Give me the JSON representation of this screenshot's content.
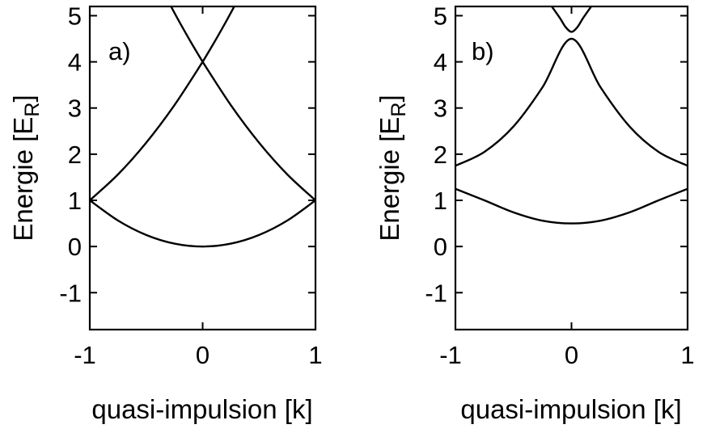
{
  "chart_data": [
    {
      "type": "line",
      "panel_label": "a)",
      "xlabel": "quasi-impulsion [k]",
      "ylabel": "Energie [E",
      "ylabel_sub": "R",
      "ylabel_close": "]",
      "xlim": [
        -1,
        1
      ],
      "ylim": [
        -1.8,
        5.2
      ],
      "xticks": [
        "-1",
        "0",
        "1"
      ],
      "yticks": [
        "-1",
        "0",
        "1",
        "2",
        "3",
        "4",
        "5"
      ],
      "grid": false,
      "series": [
        {
          "x": [
            -1,
            -0.75,
            -0.5,
            -0.25,
            0,
            0.25,
            0.5,
            0.75,
            1
          ],
          "y": [
            1.0,
            0.5625,
            0.25,
            0.0625,
            0.0,
            0.0625,
            0.25,
            0.5625,
            1.0
          ]
        },
        {
          "x": [
            -1,
            -0.75,
            -0.5,
            -0.25,
            0
          ],
          "y": [
            1.0,
            1.5625,
            2.25,
            3.0625,
            4.0
          ]
        },
        {
          "x": [
            0,
            0.25,
            0.5,
            0.75,
            1
          ],
          "y": [
            4.0,
            3.0625,
            2.25,
            1.5625,
            1.0
          ]
        },
        {
          "x": [
            -0.28,
            -0.2,
            -0.1,
            0
          ],
          "y": [
            5.2,
            4.84,
            4.41,
            4.0
          ]
        },
        {
          "x": [
            0,
            0.1,
            0.2,
            0.28
          ],
          "y": [
            4.0,
            4.41,
            4.84,
            5.2
          ]
        }
      ]
    },
    {
      "type": "line",
      "panel_label": "b)",
      "xlabel": "quasi-impulsion [k]",
      "ylabel": "Energie [E",
      "ylabel_sub": "R",
      "ylabel_close": "]",
      "xlim": [
        -1,
        1
      ],
      "ylim": [
        -1.8,
        5.2
      ],
      "xticks": [
        "-1",
        "0",
        "1"
      ],
      "yticks": [
        "-1",
        "0",
        "1",
        "2",
        "3",
        "4",
        "5"
      ],
      "grid": false,
      "series": [
        {
          "x": [
            -1,
            -0.75,
            -0.5,
            -0.25,
            0,
            0.25,
            0.5,
            0.75,
            1
          ],
          "y": [
            1.25,
            1.0,
            0.74,
            0.56,
            0.5,
            0.56,
            0.74,
            1.0,
            1.25
          ]
        },
        {
          "x": [
            -1,
            -0.75,
            -0.5,
            -0.25,
            0,
            0.25,
            0.5,
            0.75,
            1
          ],
          "y": [
            1.75,
            2.05,
            2.6,
            3.45,
            4.5,
            3.45,
            2.6,
            2.05,
            1.75
          ]
        },
        {
          "x": [
            -0.17,
            -0.1,
            -0.05,
            0,
            0.05,
            0.1,
            0.17
          ],
          "y": [
            5.2,
            4.95,
            4.75,
            4.65,
            4.75,
            4.95,
            5.2
          ]
        }
      ]
    }
  ]
}
